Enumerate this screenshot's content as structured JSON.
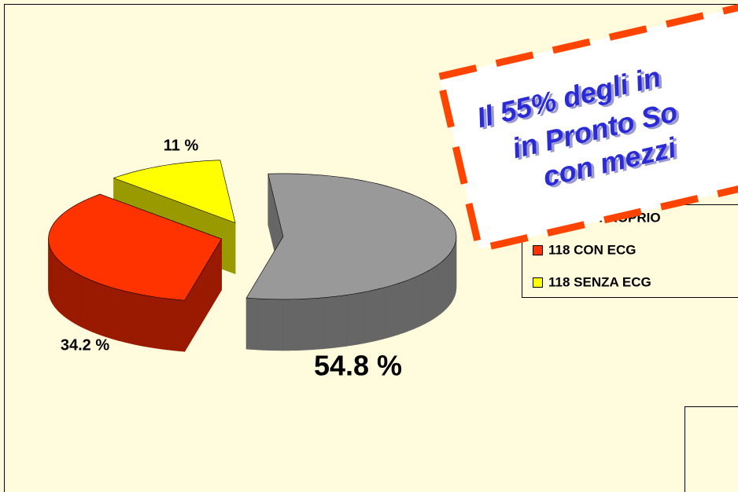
{
  "chart_data": {
    "type": "pie",
    "categories": [
      "MEZZO PROPRIO",
      "118 CON ECG",
      "118 SENZA ECG"
    ],
    "values": [
      54.8,
      34.2,
      11
    ],
    "value_labels": [
      "54.8 %",
      "34.2 %",
      "11 %"
    ],
    "colors": [
      "#999999",
      "#ff3300",
      "#ffff00"
    ],
    "side_colors": [
      "#666666",
      "#991a00",
      "#999900"
    ],
    "legend": "right",
    "annotations": [
      "Il 55% degli in",
      "in Pronto So",
      "con mezzi"
    ]
  }
}
